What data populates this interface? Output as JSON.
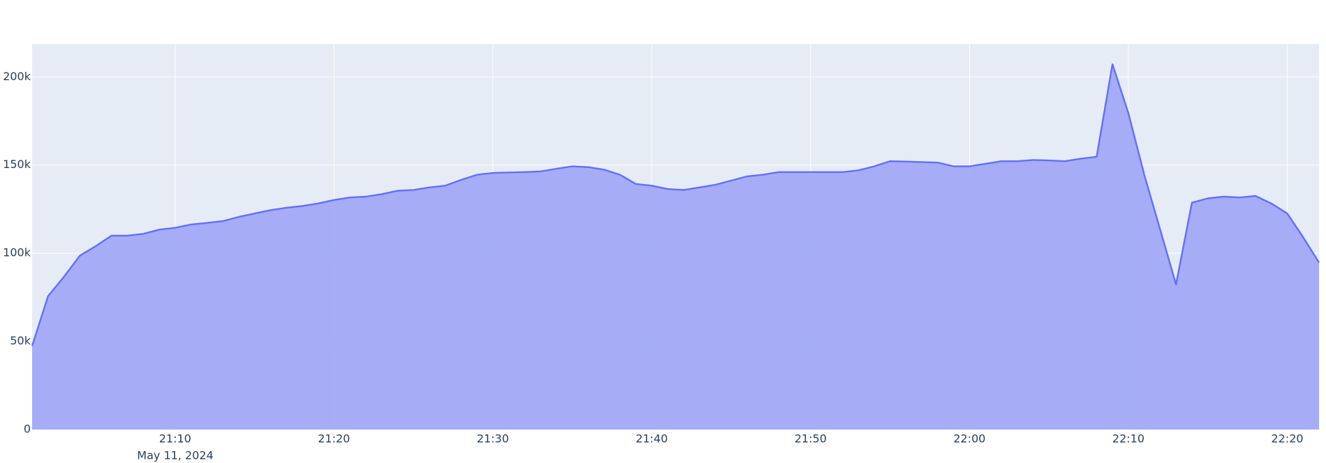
{
  "chart_data": {
    "type": "area",
    "x": [
      "2024-05-11 21:01",
      "2024-05-11 21:02",
      "2024-05-11 21:03",
      "2024-05-11 21:04",
      "2024-05-11 21:05",
      "2024-05-11 21:06",
      "2024-05-11 21:07",
      "2024-05-11 21:08",
      "2024-05-11 21:09",
      "2024-05-11 21:10",
      "2024-05-11 21:11",
      "2024-05-11 21:12",
      "2024-05-11 21:13",
      "2024-05-11 21:14",
      "2024-05-11 21:15",
      "2024-05-11 21:16",
      "2024-05-11 21:17",
      "2024-05-11 21:18",
      "2024-05-11 21:19",
      "2024-05-11 21:20",
      "2024-05-11 21:21",
      "2024-05-11 21:22",
      "2024-05-11 21:23",
      "2024-05-11 21:24",
      "2024-05-11 21:25",
      "2024-05-11 21:26",
      "2024-05-11 21:27",
      "2024-05-11 21:28",
      "2024-05-11 21:29",
      "2024-05-11 21:30",
      "2024-05-11 21:31",
      "2024-05-11 21:32",
      "2024-05-11 21:33",
      "2024-05-11 21:34",
      "2024-05-11 21:35",
      "2024-05-11 21:36",
      "2024-05-11 21:37",
      "2024-05-11 21:38",
      "2024-05-11 21:39",
      "2024-05-11 21:40",
      "2024-05-11 21:41",
      "2024-05-11 21:42",
      "2024-05-11 21:43",
      "2024-05-11 21:44",
      "2024-05-11 21:45",
      "2024-05-11 21:46",
      "2024-05-11 21:47",
      "2024-05-11 21:48",
      "2024-05-11 21:49",
      "2024-05-11 21:50",
      "2024-05-11 21:51",
      "2024-05-11 21:52",
      "2024-05-11 21:53",
      "2024-05-11 21:54",
      "2024-05-11 21:55",
      "2024-05-11 21:56",
      "2024-05-11 21:57",
      "2024-05-11 21:58",
      "2024-05-11 21:59",
      "2024-05-11 22:00",
      "2024-05-11 22:01",
      "2024-05-11 22:02",
      "2024-05-11 22:03",
      "2024-05-11 22:04",
      "2024-05-11 22:05",
      "2024-05-11 22:06",
      "2024-05-11 22:07",
      "2024-05-11 22:08",
      "2024-05-11 22:09",
      "2024-05-11 22:10",
      "2024-05-11 22:11",
      "2024-05-11 22:12",
      "2024-05-11 22:13",
      "2024-05-11 22:14",
      "2024-05-11 22:15",
      "2024-05-11 22:16",
      "2024-05-11 22:17",
      "2024-05-11 22:18",
      "2024-05-11 22:19",
      "2024-05-11 22:20",
      "2024-05-11 22:21",
      "2024-05-11 22:22"
    ],
    "values": [
      47400,
      75600,
      86600,
      98600,
      104000,
      110000,
      110000,
      111000,
      113400,
      114400,
      116300,
      117200,
      118200,
      120600,
      122500,
      124400,
      125800,
      126800,
      128200,
      130200,
      131600,
      132100,
      133500,
      135400,
      135900,
      137300,
      138300,
      141600,
      144500,
      145500,
      145800,
      146000,
      146400,
      147900,
      149300,
      148800,
      147400,
      144500,
      139300,
      138300,
      136400,
      135900,
      137300,
      138800,
      141200,
      143600,
      144500,
      146000,
      146000,
      146000,
      146000,
      146000,
      147000,
      149300,
      152200,
      152000,
      151700,
      151400,
      149300,
      149300,
      150700,
      152200,
      152200,
      152900,
      152600,
      152200,
      153600,
      154700,
      207200,
      179400,
      144500,
      113400,
      82300,
      128700,
      131100,
      132100,
      131600,
      132500,
      128200,
      122500,
      109100,
      94700
    ],
    "color": "#636efa",
    "fill_color": "#a2aaf6",
    "xlim": [
      "2024-05-11 21:01",
      "2024-05-11 22:22"
    ],
    "xticks": [
      {
        "value": "2024-05-11 21:10",
        "label": "21:10"
      },
      {
        "value": "2024-05-11 21:20",
        "label": "21:20"
      },
      {
        "value": "2024-05-11 21:30",
        "label": "21:30"
      },
      {
        "value": "2024-05-11 21:40",
        "label": "21:40"
      },
      {
        "value": "2024-05-11 21:50",
        "label": "21:50"
      },
      {
        "value": "2024-05-11 22:00",
        "label": "22:00"
      },
      {
        "value": "2024-05-11 22:10",
        "label": "22:10"
      },
      {
        "value": "2024-05-11 22:20",
        "label": "22:20"
      }
    ],
    "x_date_label": "May 11, 2024",
    "ylim": [
      0,
      218700
    ],
    "yticks": [
      0,
      {
        "value": 50000,
        "label": "50k"
      },
      {
        "value": 100000,
        "label": "100k"
      },
      {
        "value": 150000,
        "label": "150k"
      },
      {
        "value": 200000,
        "label": "200k"
      }
    ],
    "grid": true
  }
}
